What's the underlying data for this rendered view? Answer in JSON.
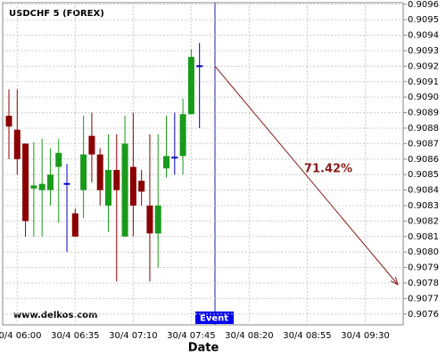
{
  "chart_data": {
    "type": "candlestick",
    "title": "USDCHF 5 (FOREX)",
    "x_label": "Date",
    "categories": [
      null,
      "30/4 06:00",
      null,
      null,
      null,
      null,
      null,
      null,
      "30/4 06:35",
      null,
      null,
      null,
      null,
      null,
      null,
      "30/4 07:10",
      null,
      null,
      null,
      null,
      null,
      null,
      "30/4 07:45",
      null,
      null,
      null,
      null,
      null,
      null,
      "30/4 08:20",
      null,
      null,
      null,
      null,
      null,
      null,
      "30/4 08:55",
      null,
      null,
      null,
      null,
      null,
      null,
      "30/4 09:30",
      null,
      null,
      null,
      null
    ],
    "open": [
      0.90888,
      0.90879,
      0.9087,
      0.90841,
      0.9084,
      0.9084,
      0.90855,
      0.90844,
      0.90825,
      0.9084,
      0.90875,
      0.90863,
      0.9083,
      0.90853,
      0.9081,
      0.90855,
      0.90846,
      0.9083,
      0.90812,
      0.90854,
      0.90861,
      0.90862,
      0.90889,
      0.9092,
      null,
      null,
      null,
      null,
      null,
      null,
      null,
      null,
      null,
      null,
      null,
      null,
      null,
      null,
      null,
      null,
      null,
      null,
      null,
      null,
      null,
      null,
      null,
      null
    ],
    "high": [
      0.90905,
      0.90905,
      0.9087,
      0.90871,
      0.90873,
      0.90867,
      0.90873,
      0.90857,
      0.90828,
      0.90888,
      0.9089,
      0.90867,
      0.90876,
      0.90876,
      0.90888,
      0.9089,
      0.90853,
      0.90876,
      0.90876,
      0.90888,
      0.9089,
      0.90899,
      0.90931,
      0.90935,
      null,
      null,
      null,
      null,
      null,
      null,
      null,
      null,
      null,
      null,
      null,
      null,
      null,
      null,
      null,
      null,
      null,
      null,
      null,
      null,
      null,
      null,
      null,
      null
    ],
    "low": [
      0.9086,
      0.9085,
      0.9081,
      0.9081,
      0.9081,
      0.9083,
      0.90819,
      0.908,
      0.9081,
      0.90822,
      0.90845,
      0.9083,
      0.90813,
      0.90781,
      0.9081,
      0.9081,
      0.9083,
      0.90781,
      0.9079,
      0.90848,
      0.9085,
      0.9085,
      0.90889,
      0.9088,
      null,
      null,
      null,
      null,
      null,
      null,
      null,
      null,
      null,
      null,
      null,
      null,
      null,
      null,
      null,
      null,
      null,
      null,
      null,
      null,
      null,
      null,
      null,
      null
    ],
    "close": [
      0.90881,
      0.9086,
      0.9082,
      0.90843,
      0.90844,
      0.9085,
      0.90864,
      0.90844,
      0.9081,
      0.90863,
      0.90863,
      0.9084,
      0.90853,
      0.9084,
      0.9087,
      0.9083,
      0.90839,
      0.90812,
      0.9083,
      0.90862,
      0.90861,
      0.90889,
      0.90926,
      0.9092,
      null,
      null,
      null,
      null,
      null,
      null,
      null,
      null,
      null,
      null,
      null,
      null,
      null,
      null,
      null,
      null,
      null,
      null,
      null,
      null,
      null,
      null,
      null,
      null
    ],
    "up_color": "#1a9a1a",
    "down_color": "#8b0000",
    "flat_color": "#0000cc",
    "ylim": [
      0.90753,
      0.90961
    ],
    "yticks": [
      0.9076,
      0.9077,
      0.9078,
      0.9079,
      {
        "value": 0.908,
        "label": "0.9080"
      },
      0.9081,
      0.9082,
      0.9083,
      0.9084,
      0.9085,
      0.9086,
      0.9087,
      0.9088,
      0.9089,
      {
        "value": 0.909,
        "label": "0.9090"
      },
      0.9091,
      0.9092,
      0.9093,
      0.9094,
      0.9095,
      0.9096
    ],
    "grid": true,
    "event": {
      "label": "Event"
    },
    "forecast": {
      "label": "71.42%",
      "from": 0.9092,
      "to": 0.90779,
      "color": "#8b1a1a"
    },
    "watermark": "www.delkos.com"
  }
}
